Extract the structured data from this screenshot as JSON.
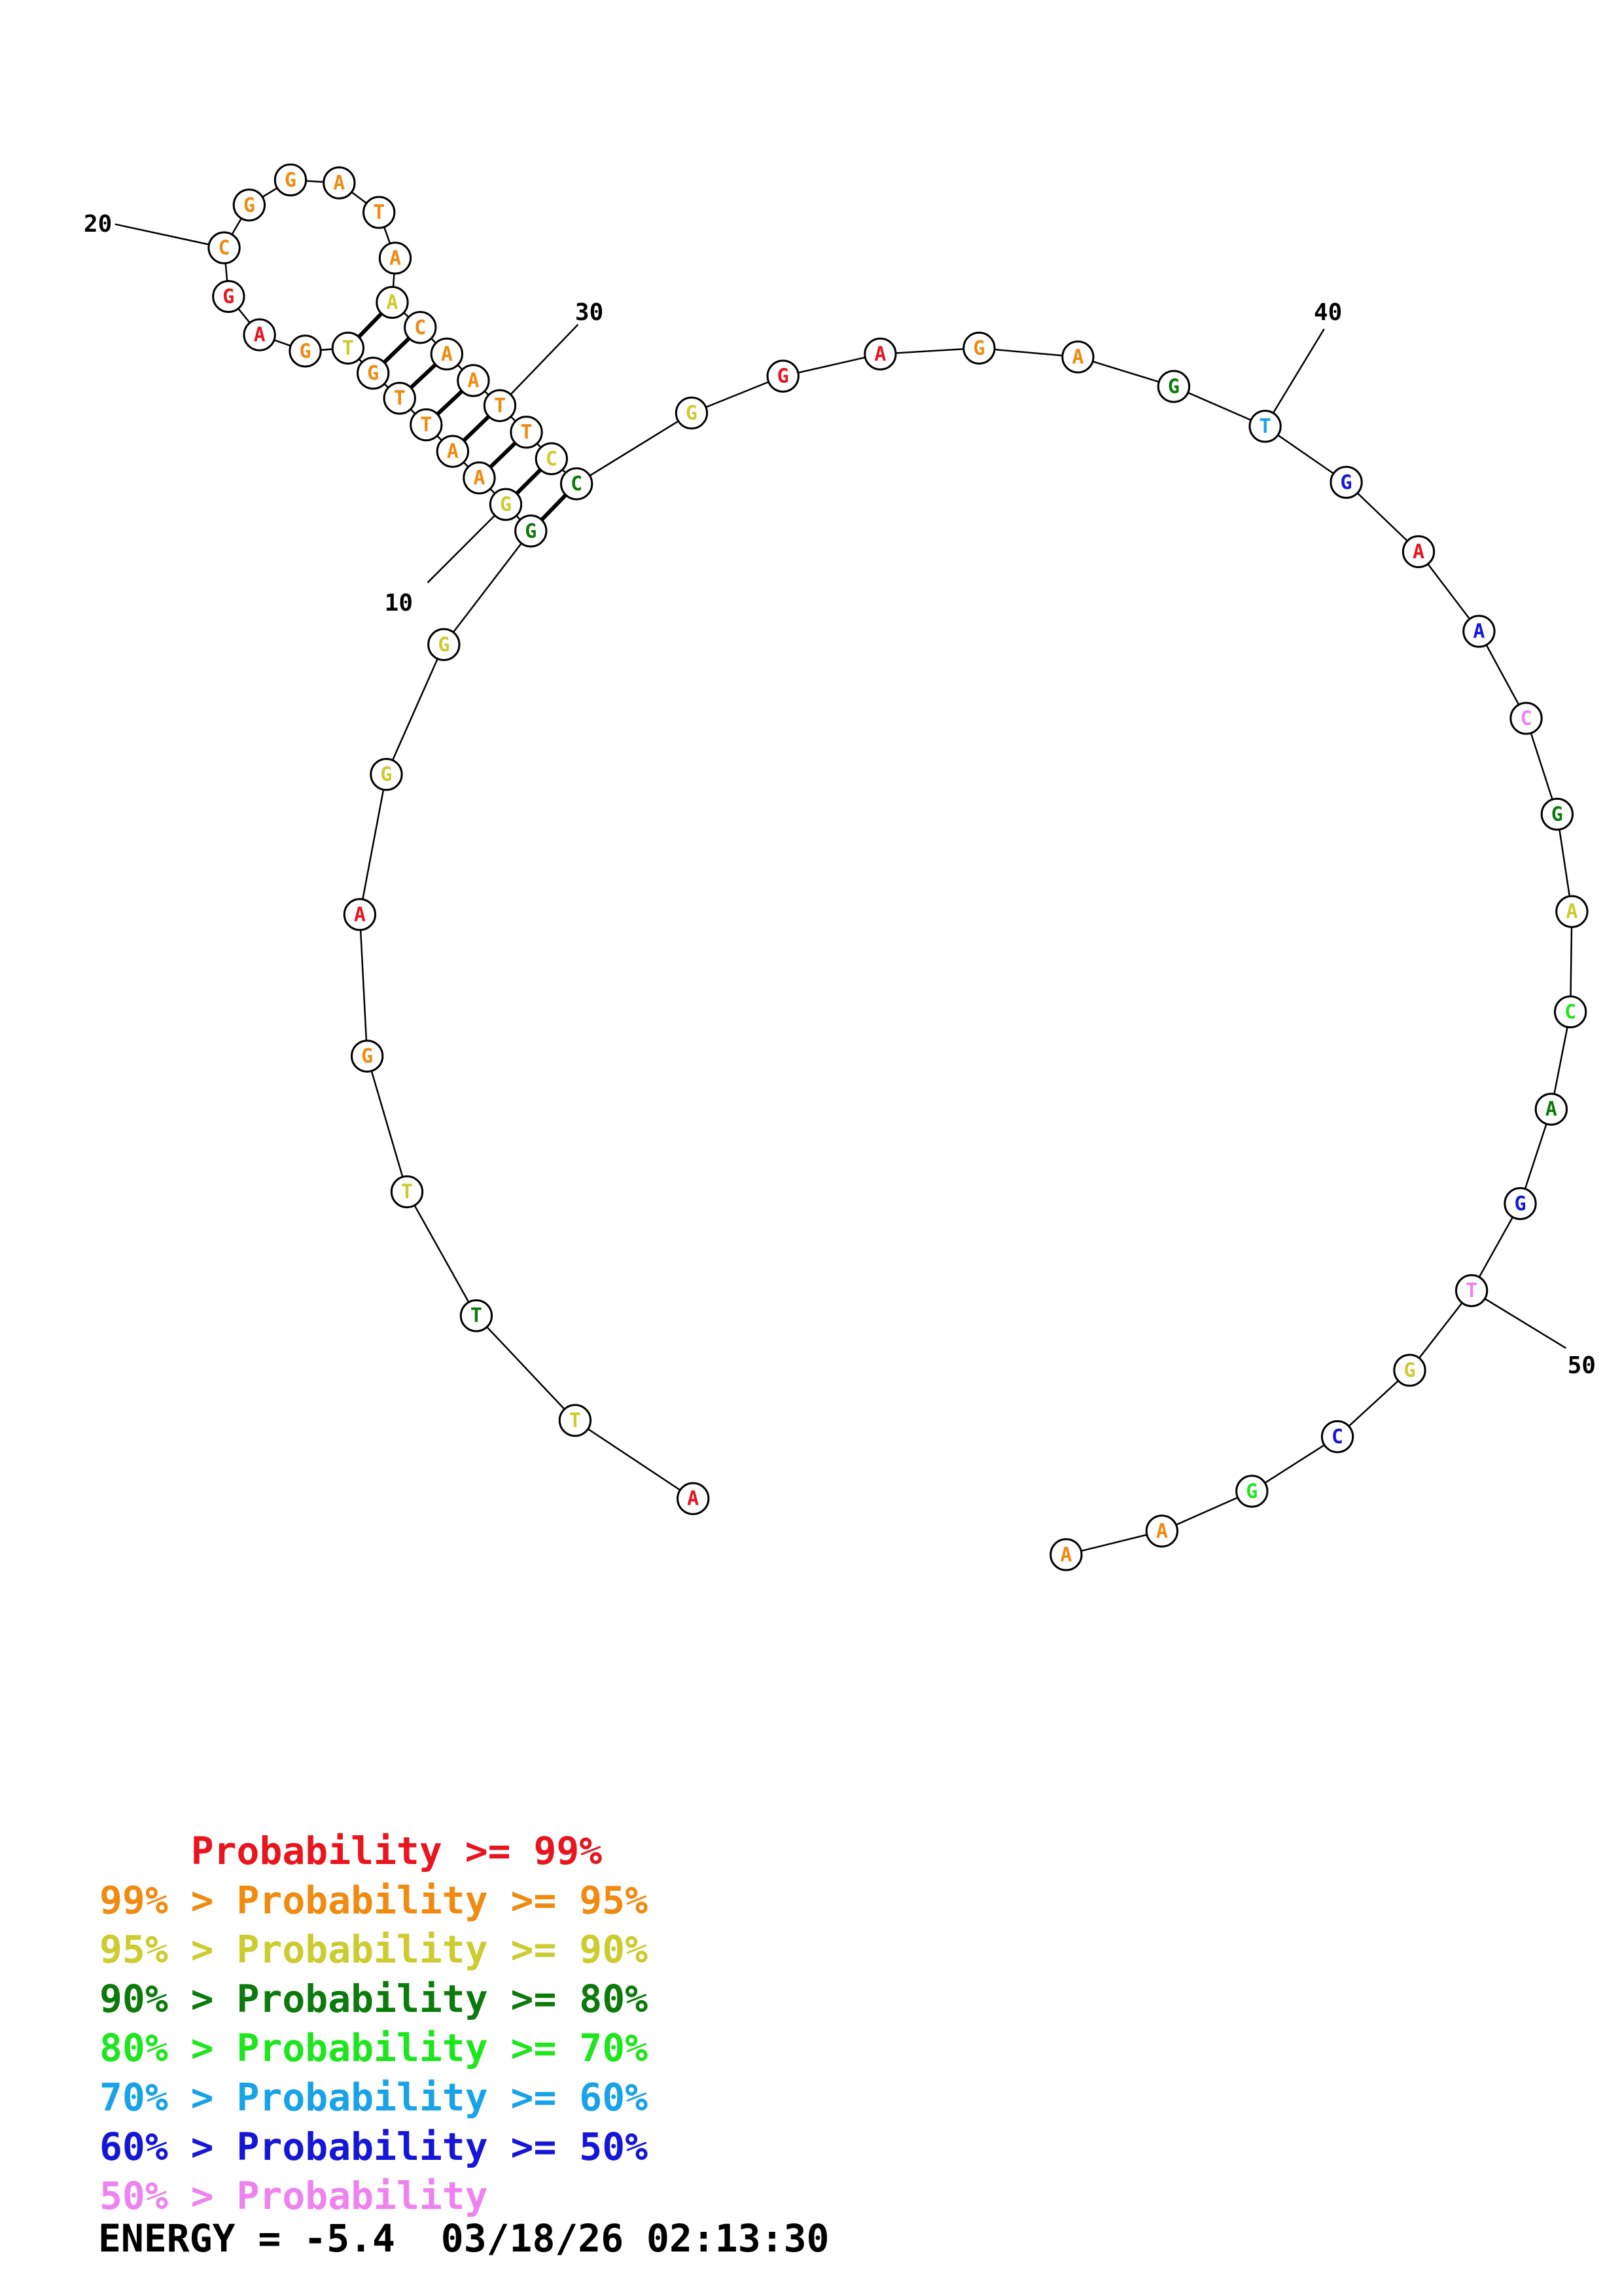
{
  "colors": {
    "p99": "#e8141e",
    "p95": "#f08a10",
    "p90": "#cccc30",
    "p80": "#0d7a0d",
    "p70": "#1ee61e",
    "p60": "#18a2e8",
    "p50": "#1616d8",
    "plow": "#ee82ee"
  },
  "sequence": [
    {
      "n": 1,
      "base": "A",
      "c": "p99"
    },
    {
      "n": 2,
      "base": "T",
      "c": "p90"
    },
    {
      "n": 3,
      "base": "T",
      "c": "p80"
    },
    {
      "n": 4,
      "base": "T",
      "c": "p90"
    },
    {
      "n": 5,
      "base": "G",
      "c": "p95"
    },
    {
      "n": 6,
      "base": "A",
      "c": "p99"
    },
    {
      "n": 7,
      "base": "G",
      "c": "p90"
    },
    {
      "n": 8,
      "base": "G",
      "c": "p90"
    },
    {
      "n": 9,
      "base": "G",
      "c": "p80"
    },
    {
      "n": 10,
      "base": "G",
      "c": "p90"
    },
    {
      "n": 11,
      "base": "A",
      "c": "p95"
    },
    {
      "n": 12,
      "base": "A",
      "c": "p95"
    },
    {
      "n": 13,
      "base": "T",
      "c": "p95"
    },
    {
      "n": 14,
      "base": "T",
      "c": "p95"
    },
    {
      "n": 15,
      "base": "G",
      "c": "p95"
    },
    {
      "n": 16,
      "base": "T",
      "c": "p90"
    },
    {
      "n": 17,
      "base": "G",
      "c": "p95"
    },
    {
      "n": 18,
      "base": "A",
      "c": "p99"
    },
    {
      "n": 19,
      "base": "G",
      "c": "p99"
    },
    {
      "n": 20,
      "base": "C",
      "c": "p95"
    },
    {
      "n": 21,
      "base": "G",
      "c": "p95"
    },
    {
      "n": 22,
      "base": "G",
      "c": "p95"
    },
    {
      "n": 23,
      "base": "A",
      "c": "p95"
    },
    {
      "n": 24,
      "base": "T",
      "c": "p95"
    },
    {
      "n": 25,
      "base": "A",
      "c": "p95"
    },
    {
      "n": 26,
      "base": "A",
      "c": "p90"
    },
    {
      "n": 27,
      "base": "C",
      "c": "p95"
    },
    {
      "n": 28,
      "base": "A",
      "c": "p95"
    },
    {
      "n": 29,
      "base": "A",
      "c": "p95"
    },
    {
      "n": 30,
      "base": "T",
      "c": "p95"
    },
    {
      "n": 31,
      "base": "T",
      "c": "p95"
    },
    {
      "n": 32,
      "base": "C",
      "c": "p90"
    },
    {
      "n": 33,
      "base": "C",
      "c": "p80"
    },
    {
      "n": 34,
      "base": "G",
      "c": "p90"
    },
    {
      "n": 35,
      "base": "G",
      "c": "p99"
    },
    {
      "n": 36,
      "base": "A",
      "c": "p99"
    },
    {
      "n": 37,
      "base": "G",
      "c": "p95"
    },
    {
      "n": 38,
      "base": "A",
      "c": "p95"
    },
    {
      "n": 39,
      "base": "G",
      "c": "p80"
    },
    {
      "n": 40,
      "base": "T",
      "c": "p60"
    },
    {
      "n": 41,
      "base": "G",
      "c": "p50"
    },
    {
      "n": 42,
      "base": "A",
      "c": "p99"
    },
    {
      "n": 43,
      "base": "A",
      "c": "p50"
    },
    {
      "n": 44,
      "base": "C",
      "c": "plow"
    },
    {
      "n": 45,
      "base": "G",
      "c": "p80"
    },
    {
      "n": 46,
      "base": "A",
      "c": "p90"
    },
    {
      "n": 47,
      "base": "C",
      "c": "p70"
    },
    {
      "n": 48,
      "base": "A",
      "c": "p80"
    },
    {
      "n": 49,
      "base": "G",
      "c": "p50"
    },
    {
      "n": 50,
      "base": "T",
      "c": "plow"
    },
    {
      "n": 51,
      "base": "G",
      "c": "p90"
    },
    {
      "n": 52,
      "base": "C",
      "c": "p50"
    },
    {
      "n": 53,
      "base": "G",
      "c": "p70"
    },
    {
      "n": 54,
      "base": "A",
      "c": "p95"
    },
    {
      "n": 55,
      "base": "A",
      "c": "p95"
    }
  ],
  "pairs": [
    [
      9,
      33
    ],
    [
      10,
      32
    ],
    [
      11,
      31
    ],
    [
      12,
      30
    ],
    [
      13,
      29
    ],
    [
      14,
      28
    ],
    [
      15,
      27
    ],
    [
      16,
      26
    ]
  ],
  "index_labels": [
    {
      "n": 10,
      "text": "10"
    },
    {
      "n": 20,
      "text": "20"
    },
    {
      "n": 30,
      "text": "30"
    },
    {
      "n": 40,
      "text": "40"
    },
    {
      "n": 50,
      "text": "50"
    }
  ],
  "legend": [
    {
      "prefix": "    ",
      "label": "Probability >= 99%",
      "c": "p99"
    },
    {
      "prefix": "99% > ",
      "label": "Probability >= 95%",
      "c": "p95"
    },
    {
      "prefix": "95% > ",
      "label": "Probability >= 90%",
      "c": "p90"
    },
    {
      "prefix": "90% > ",
      "label": "Probability >= 80%",
      "c": "p80"
    },
    {
      "prefix": "80% > ",
      "label": "Probability >= 70%",
      "c": "p70"
    },
    {
      "prefix": "70% > ",
      "label": "Probability >= 60%",
      "c": "p60"
    },
    {
      "prefix": "60% > ",
      "label": "Probability >= 50%",
      "c": "p50"
    },
    {
      "prefix": "50% > ",
      "label": "Probability",
      "c": "plow"
    }
  ],
  "energy": "ENERGY = -5.4  03/18/26 02:13:30"
}
